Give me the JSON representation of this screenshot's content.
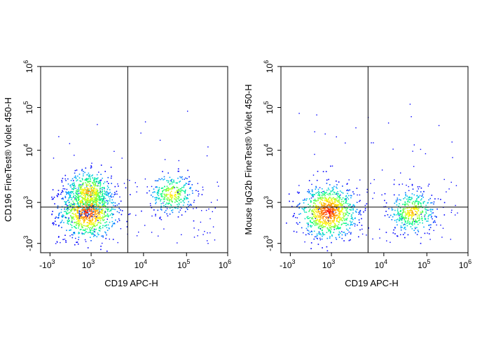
{
  "chart_data": [
    {
      "type": "scatter",
      "subtype": "flow-cytometry-density-dot-plot",
      "title": "",
      "xlabel": "CD19 APC-H",
      "ylabel": "CD196 FineTest® Violet 450-H",
      "x_scale": "biexponential",
      "y_scale": "biexponential",
      "x_ticks": [
        {
          "label": "-10",
          "sup": "3"
        },
        {
          "label": "10",
          "sup": "3"
        },
        {
          "label": "10",
          "sup": "4"
        },
        {
          "label": "10",
          "sup": "5"
        },
        {
          "label": "10",
          "sup": "6"
        }
      ],
      "y_ticks": [
        {
          "label": "-10",
          "sup": "3"
        },
        {
          "label": "10",
          "sup": "3"
        },
        {
          "label": "10",
          "sup": "4"
        },
        {
          "label": "10",
          "sup": "5"
        },
        {
          "label": "10",
          "sup": "6"
        }
      ],
      "gate": {
        "x": 5000,
        "y": 500
      },
      "populations": [
        {
          "x": 600,
          "y": 30,
          "relative_size": 1.0,
          "description": "CD19- CD196-"
        },
        {
          "x": 700,
          "y": 1600,
          "relative_size": 0.55,
          "description": "CD19- CD196+"
        },
        {
          "x": 45000,
          "y": 1500,
          "relative_size": 0.35,
          "description": "CD19+ CD196+"
        }
      ],
      "color_scale": [
        "#0000ff",
        "#00b8ff",
        "#00ff80",
        "#ffff00",
        "#ff8000",
        "#ff0000"
      ]
    },
    {
      "type": "scatter",
      "subtype": "flow-cytometry-density-dot-plot",
      "title": "",
      "xlabel": "CD19 APC-H",
      "ylabel": "Mouse IgG2b FineTest® Violet 450-H",
      "x_scale": "biexponential",
      "y_scale": "biexponential",
      "x_ticks": [
        {
          "label": "-10",
          "sup": "3"
        },
        {
          "label": "10",
          "sup": "3"
        },
        {
          "label": "10",
          "sup": "4"
        },
        {
          "label": "10",
          "sup": "5"
        },
        {
          "label": "10",
          "sup": "6"
        }
      ],
      "y_ticks": [
        {
          "label": "-10",
          "sup": "3"
        },
        {
          "label": "10",
          "sup": "3"
        },
        {
          "label": "10",
          "sup": "4"
        },
        {
          "label": "10",
          "sup": "5"
        },
        {
          "label": "10",
          "sup": "6"
        }
      ],
      "gate": {
        "x": 5000,
        "y": 500
      },
      "populations": [
        {
          "x": 600,
          "y": 20,
          "relative_size": 1.0,
          "description": "CD19- isotype"
        },
        {
          "x": 45000,
          "y": 20,
          "relative_size": 0.45,
          "description": "CD19+ isotype"
        }
      ],
      "color_scale": [
        "#0000ff",
        "#00b8ff",
        "#00ff80",
        "#ffff00",
        "#ff8000",
        "#ff0000"
      ]
    }
  ]
}
